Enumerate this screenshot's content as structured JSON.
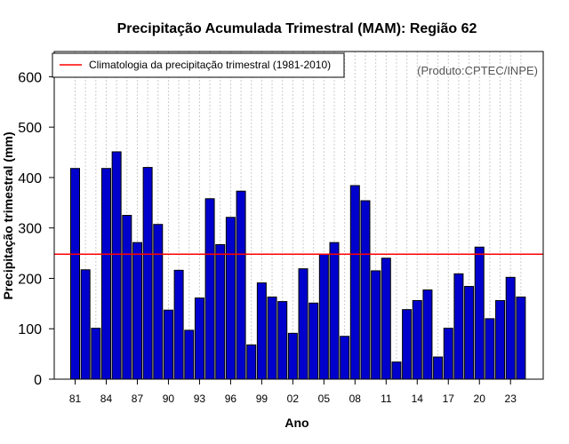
{
  "chart_data": {
    "type": "bar",
    "title": "Precipitação Acumulada Trimestral (MAM): Região 62",
    "xlabel": "Ano",
    "ylabel": "Precipitação trimestral (mm)",
    "ylim": [
      0,
      650
    ],
    "yticks": [
      0,
      100,
      200,
      300,
      400,
      500,
      600
    ],
    "grid": "vertical dotted",
    "categories": [
      "81",
      "82",
      "83",
      "84",
      "85",
      "86",
      "87",
      "88",
      "89",
      "90",
      "91",
      "92",
      "93",
      "94",
      "95",
      "96",
      "97",
      "98",
      "99",
      "00",
      "01",
      "02",
      "03",
      "04",
      "05",
      "06",
      "07",
      "08",
      "09",
      "10",
      "11",
      "12",
      "13",
      "14",
      "15",
      "16",
      "17",
      "18",
      "19",
      "20",
      "21",
      "22",
      "23",
      "24"
    ],
    "values": [
      418,
      217,
      101,
      418,
      451,
      325,
      271,
      420,
      307,
      137,
      216,
      97,
      161,
      358,
      267,
      321,
      373,
      68,
      191,
      163,
      154,
      91,
      219,
      151,
      248,
      271,
      85,
      384,
      354,
      215,
      240,
      34,
      138,
      156,
      177,
      44,
      101,
      209,
      184,
      262,
      120,
      156,
      202,
      163
    ],
    "xtick_labels": [
      "81",
      "84",
      "87",
      "90",
      "93",
      "96",
      "99",
      "02",
      "05",
      "08",
      "11",
      "14",
      "17",
      "20",
      "23"
    ],
    "climatology": {
      "label": "Climatologia da precipitação trimestral (1981-2010)",
      "value": 248
    },
    "legend_position": "top-left",
    "annotation": "(Produto:CPTEC/INPE)",
    "colors": {
      "bar_fill": "#0000cd",
      "bar_stroke": "#000000",
      "climatology_line": "#ff0000",
      "grid": "#cccccc",
      "annotation": "#555555"
    }
  }
}
